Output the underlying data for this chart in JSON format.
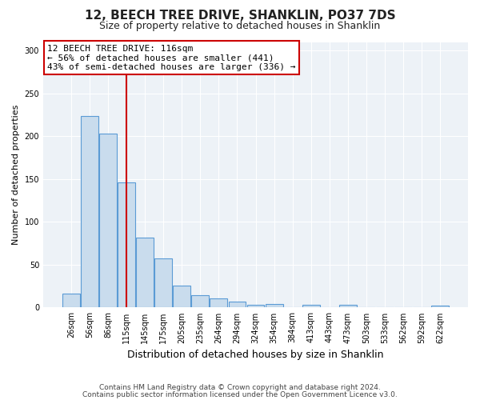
{
  "title1": "12, BEECH TREE DRIVE, SHANKLIN, PO37 7DS",
  "title2": "Size of property relative to detached houses in Shanklin",
  "xlabel": "Distribution of detached houses by size in Shanklin",
  "ylabel": "Number of detached properties",
  "bar_labels": [
    "26sqm",
    "56sqm",
    "86sqm",
    "115sqm",
    "145sqm",
    "175sqm",
    "205sqm",
    "235sqm",
    "264sqm",
    "294sqm",
    "324sqm",
    "354sqm",
    "384sqm",
    "413sqm",
    "443sqm",
    "473sqm",
    "503sqm",
    "533sqm",
    "562sqm",
    "592sqm",
    "622sqm"
  ],
  "bar_heights": [
    16,
    224,
    203,
    146,
    82,
    57,
    26,
    14,
    11,
    7,
    3,
    4,
    0,
    3,
    0,
    3,
    0,
    0,
    0,
    0,
    2
  ],
  "bar_color": "#c9dced",
  "bar_edge_color": "#5b9bd5",
  "vline_color": "#cc0000",
  "vline_x": 3,
  "annotation_line1": "12 BEECH TREE DRIVE: 116sqm",
  "annotation_line2": "← 56% of detached houses are smaller (441)",
  "annotation_line3": "43% of semi-detached houses are larger (336) →",
  "annotation_box_facecolor": "#ffffff",
  "annotation_box_edgecolor": "#cc0000",
  "ylim": [
    0,
    310
  ],
  "yticks": [
    0,
    50,
    100,
    150,
    200,
    250,
    300
  ],
  "footer1": "Contains HM Land Registry data © Crown copyright and database right 2024.",
  "footer2": "Contains public sector information licensed under the Open Government Licence v3.0.",
  "fig_facecolor": "#ffffff",
  "plot_facecolor": "#edf2f7",
  "grid_color": "#ffffff",
  "spine_color": "#cccccc",
  "title1_fontsize": 11,
  "title2_fontsize": 9,
  "ylabel_fontsize": 8,
  "xlabel_fontsize": 9,
  "tick_fontsize": 7,
  "footer_fontsize": 6.5,
  "annot_fontsize": 8
}
